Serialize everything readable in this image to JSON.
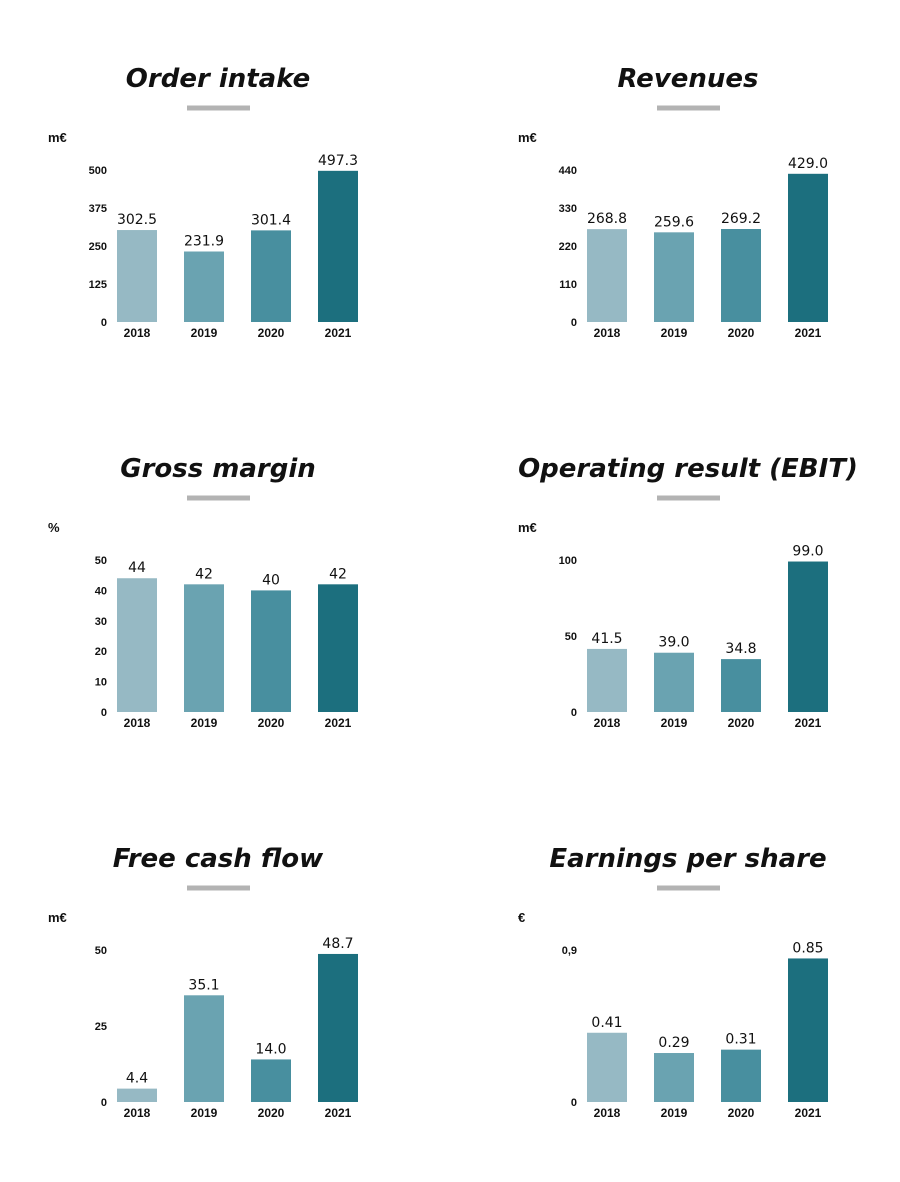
{
  "colors": [
    "#96b9c4",
    "#6aa3b1",
    "#488f9f",
    "#1c6f7e"
  ],
  "title_bar_color": "#b3b3b3",
  "chart_data": [
    {
      "type": "bar",
      "title": "Order intake",
      "unit": "m€",
      "categories": [
        "2018",
        "2019",
        "2020",
        "2021"
      ],
      "values": [
        302.5,
        231.9,
        301.4,
        497.3
      ],
      "value_labels": [
        "302.5",
        "231.9",
        "301.4",
        "497.3"
      ],
      "ylim": [
        0,
        500
      ],
      "yticks": [
        0,
        125,
        250,
        375,
        500
      ],
      "ytick_labels": [
        "0",
        "125",
        "250",
        "375",
        "500"
      ]
    },
    {
      "type": "bar",
      "title": "Revenues",
      "unit": "m€",
      "categories": [
        "2018",
        "2019",
        "2020",
        "2021"
      ],
      "values": [
        268.8,
        259.6,
        269.2,
        429.0
      ],
      "value_labels": [
        "268.8",
        "259.6",
        "269.2",
        "429.0"
      ],
      "ylim": [
        0,
        440
      ],
      "yticks": [
        0,
        110,
        220,
        330,
        440
      ],
      "ytick_labels": [
        "0",
        "110",
        "220",
        "330",
        "440"
      ]
    },
    {
      "type": "bar",
      "title": "Gross margin",
      "unit": "%",
      "categories": [
        "2018",
        "2019",
        "2020",
        "2021"
      ],
      "values": [
        44,
        42,
        40,
        42
      ],
      "value_labels": [
        "44",
        "42",
        "40",
        "42"
      ],
      "ylim": [
        0,
        50
      ],
      "yticks": [
        0,
        10,
        20,
        30,
        40,
        50
      ],
      "ytick_labels": [
        "0",
        "10",
        "20",
        "30",
        "40",
        "50"
      ]
    },
    {
      "type": "bar",
      "title": "Operating result (EBIT)",
      "unit": "m€",
      "categories": [
        "2018",
        "2019",
        "2020",
        "2021"
      ],
      "values": [
        41.5,
        39.0,
        34.8,
        99.0
      ],
      "value_labels": [
        "41.5",
        "39.0",
        "34.8",
        "99.0"
      ],
      "ylim": [
        0,
        100
      ],
      "yticks": [
        0,
        50,
        100
      ],
      "ytick_labels": [
        "0",
        "50",
        "100"
      ]
    },
    {
      "type": "bar",
      "title": "Free cash flow",
      "unit": "m€",
      "categories": [
        "2018",
        "2019",
        "2020",
        "2021"
      ],
      "values": [
        4.4,
        35.1,
        14.0,
        48.7
      ],
      "value_labels": [
        "4.4",
        "35.1",
        "14.0",
        "48.7"
      ],
      "ylim": [
        0,
        50
      ],
      "yticks": [
        0,
        25,
        50
      ],
      "ytick_labels": [
        "0",
        "25",
        "50"
      ]
    },
    {
      "type": "bar",
      "title": "Earnings per share",
      "unit": "€",
      "categories": [
        "2018",
        "2019",
        "2020",
        "2021"
      ],
      "values": [
        0.41,
        0.29,
        0.31,
        0.85
      ],
      "value_labels": [
        "0.41",
        "0.29",
        "0.31",
        "0.85"
      ],
      "ylim": [
        0,
        0.9
      ],
      "yticks": [
        0,
        0.9
      ],
      "ytick_labels": [
        "0",
        "0,9"
      ]
    }
  ]
}
